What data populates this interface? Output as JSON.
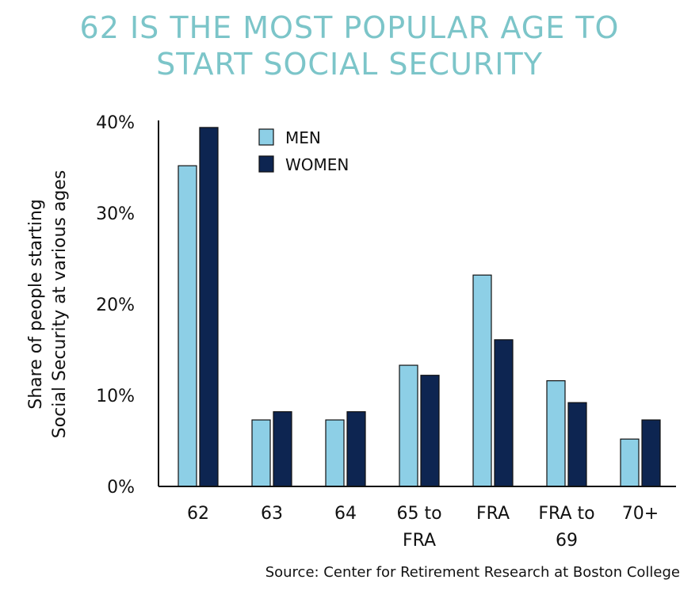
{
  "title_lines": [
    "62 IS THE MOST POPULAR AGE TO",
    "START SOCIAL SECURITY"
  ],
  "source": "Source: Center for Retirement Research at Boston College",
  "colors": {
    "title": "#7cc5c9",
    "men": "#8dcfe6",
    "women": "#0d2551",
    "axis": "#111111"
  },
  "chart_data": {
    "type": "bar",
    "title": "62 IS THE MOST POPULAR AGE TO START SOCIAL SECURITY",
    "ylabel_lines": [
      "Share of people starting",
      "Social Security at various ages"
    ],
    "xlabel": "",
    "ylim": [
      0,
      40
    ],
    "yticks": [
      0,
      10,
      20,
      30,
      40
    ],
    "ytick_labels": [
      "0%",
      "10%",
      "20%",
      "30%",
      "40%"
    ],
    "categories": [
      "62",
      "63",
      "64",
      "65 to FRA",
      "FRA",
      "FRA to 69",
      "70+"
    ],
    "category_label_lines": [
      [
        "62"
      ],
      [
        "63"
      ],
      [
        "64"
      ],
      [
        "65 to",
        "FRA"
      ],
      [
        "FRA"
      ],
      [
        "FRA to",
        "69"
      ],
      [
        "70+"
      ]
    ],
    "series": [
      {
        "name": "MEN",
        "values": [
          35.2,
          7.3,
          7.3,
          13.3,
          23.2,
          11.6,
          5.2
        ]
      },
      {
        "name": "WOMEN",
        "values": [
          39.4,
          8.2,
          8.2,
          12.2,
          16.1,
          9.2,
          7.3
        ]
      }
    ],
    "legend": [
      "MEN",
      "WOMEN"
    ],
    "legend_position": "top-left",
    "grid": false
  }
}
